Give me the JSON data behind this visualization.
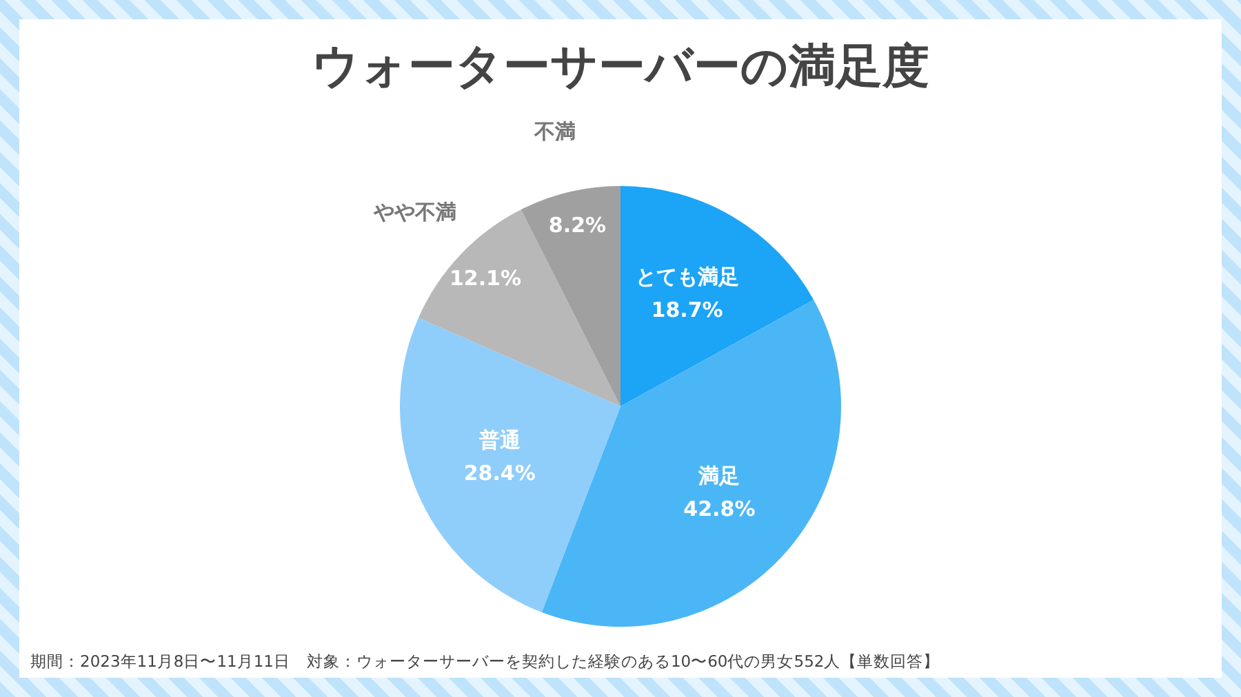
{
  "chart_data": {
    "type": "pie",
    "title": "ウォーターサーバーの満足度",
    "categories": [
      "とても満足",
      "満足",
      "普通",
      "やや不満",
      "不満"
    ],
    "values": [
      18.7,
      42.8,
      28.4,
      12.1,
      8.2
    ],
    "value_labels": [
      "18.7%",
      "42.8%",
      "28.4%",
      "12.1%",
      "8.2%"
    ],
    "colors": [
      "#1ca4f6",
      "#4bb6f6",
      "#8fcdfb",
      "#b8b8b8",
      "#a0a0a0"
    ],
    "annotations": [
      "期間：2023年11月8日〜11月11日　対象：ウォーターサーバーを契約した経験のある10〜60代の男女552人【単数回答】"
    ]
  }
}
